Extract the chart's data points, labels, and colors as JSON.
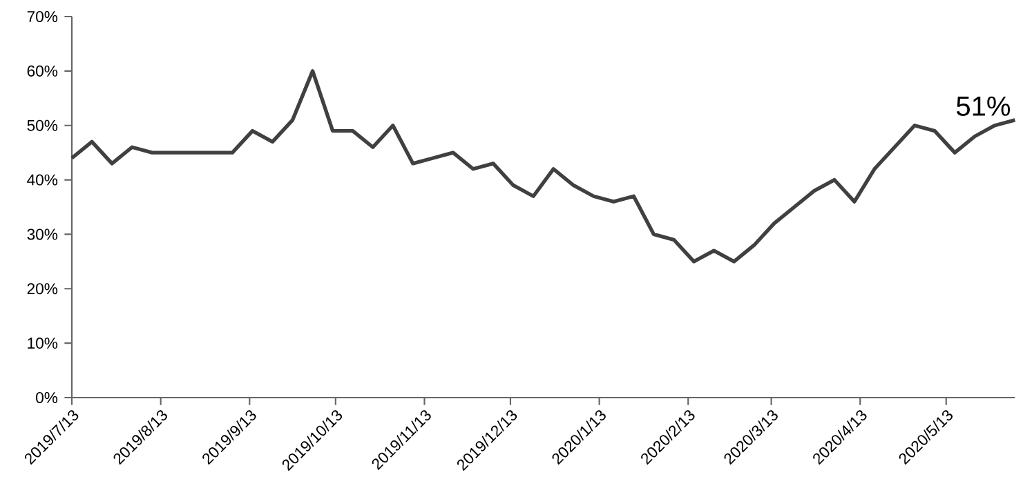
{
  "chart_data": {
    "type": "line",
    "x": [
      "2019-07-13",
      "2019-07-20",
      "2019-07-27",
      "2019-08-03",
      "2019-08-10",
      "2019-08-17",
      "2019-08-24",
      "2019-08-31",
      "2019-09-07",
      "2019-09-14",
      "2019-09-21",
      "2019-09-28",
      "2019-10-05",
      "2019-10-12",
      "2019-10-19",
      "2019-10-26",
      "2019-11-02",
      "2019-11-09",
      "2019-11-16",
      "2019-11-23",
      "2019-11-30",
      "2019-12-07",
      "2019-12-14",
      "2019-12-21",
      "2019-12-28",
      "2020-01-04",
      "2020-01-11",
      "2020-01-18",
      "2020-01-25",
      "2020-02-01",
      "2020-02-08",
      "2020-02-15",
      "2020-02-22",
      "2020-02-29",
      "2020-03-07",
      "2020-03-14",
      "2020-03-21",
      "2020-03-28",
      "2020-04-04",
      "2020-04-11",
      "2020-04-18",
      "2020-04-25",
      "2020-05-02",
      "2020-05-09",
      "2020-05-16",
      "2020-05-23",
      "2020-05-30",
      "2020-06-06"
    ],
    "series": [
      {
        "color": "#404040",
        "values": [
          44,
          47,
          43,
          46,
          45,
          45,
          45,
          45,
          45,
          49,
          47,
          51,
          60,
          49,
          49,
          46,
          50,
          43,
          44,
          45,
          42,
          43,
          39,
          37,
          42,
          39,
          37,
          36,
          37,
          30,
          29,
          25,
          27,
          25,
          28,
          32,
          35,
          38,
          40,
          36,
          42,
          46,
          50,
          49,
          45,
          48,
          50,
          51
        ]
      }
    ],
    "xlim": [
      "2019-07-13",
      "2020-06-06"
    ],
    "xticks": [
      {
        "value": "2019-07-13",
        "label": "2019/7/13"
      },
      {
        "value": "2019-08-13",
        "label": "2019/8/13"
      },
      {
        "value": "2019-09-13",
        "label": "2019/9/13"
      },
      {
        "value": "2019-10-13",
        "label": "2019/10/13"
      },
      {
        "value": "2019-11-13",
        "label": "2019/11/13"
      },
      {
        "value": "2019-12-13",
        "label": "2019/12/13"
      },
      {
        "value": "2020-01-13",
        "label": "2020/1/13"
      },
      {
        "value": "2020-02-13",
        "label": "2020/2/13"
      },
      {
        "value": "2020-03-13",
        "label": "2020/3/13"
      },
      {
        "value": "2020-04-13",
        "label": "2020/4/13"
      },
      {
        "value": "2020-05-13",
        "label": "2020/5/13"
      }
    ],
    "ylim": [
      0,
      70
    ],
    "yticks": [
      {
        "value": 0,
        "label": "0%"
      },
      {
        "value": 10,
        "label": "10%"
      },
      {
        "value": 20,
        "label": "20%"
      },
      {
        "value": 30,
        "label": "30%"
      },
      {
        "value": 40,
        "label": "40%"
      },
      {
        "value": 50,
        "label": "50%"
      },
      {
        "value": 60,
        "label": "60%"
      },
      {
        "value": 70,
        "label": "70%"
      }
    ],
    "annotations": [
      {
        "text": "51%",
        "x": "2020-06-06",
        "y": 51
      }
    ],
    "grid": false,
    "marker": "none",
    "line_style": "solid"
  }
}
